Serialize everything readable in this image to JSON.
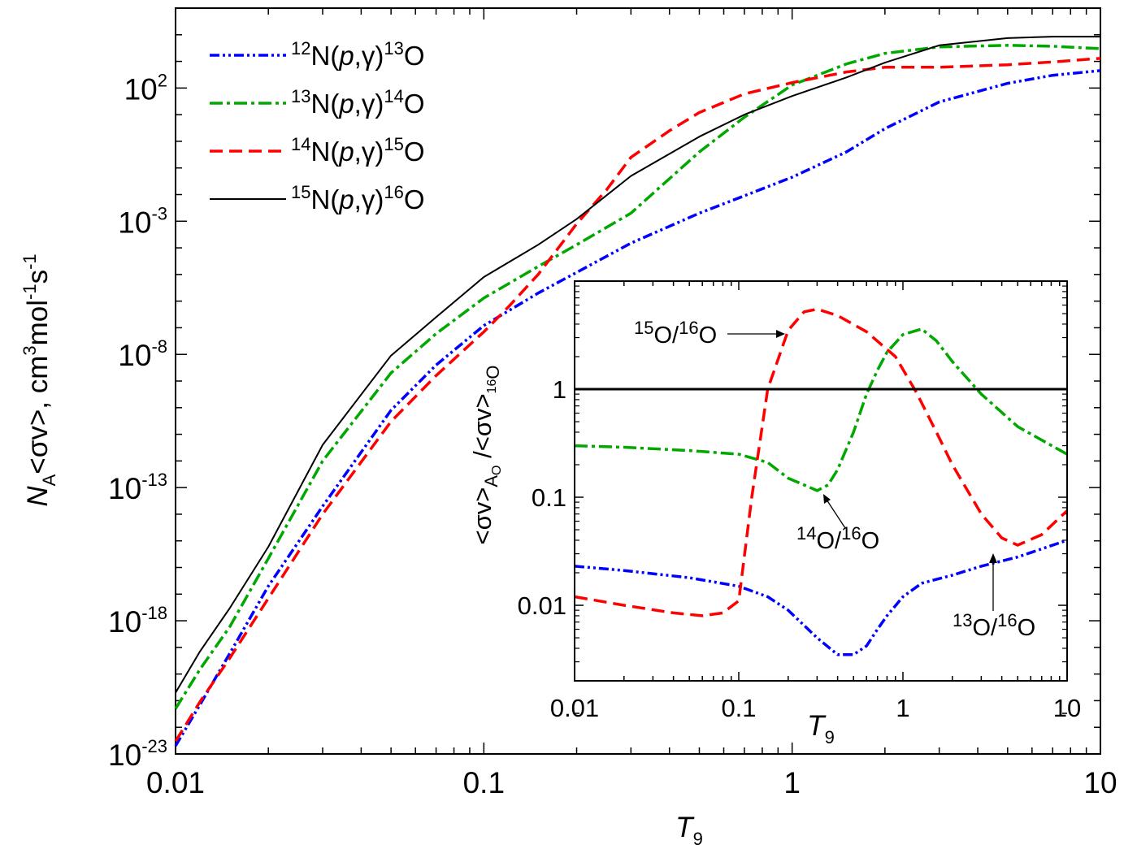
{
  "chart_data": [
    {
      "type": "line",
      "scale": "log-log",
      "x_label": {
        "symbol": "T",
        "sub": "9"
      },
      "y_label": {
        "prefix": "N",
        "prefix_sub": "A",
        "rate": "<σv>",
        "units": ", cm",
        "e1": "3",
        "mol": "mol",
        "e2": "-1",
        "s": "s",
        "e3": "-1"
      },
      "xlim": [
        0.01,
        10
      ],
      "ylim": [
        1e-23,
        100000.0
      ],
      "x_ticks": [
        {
          "value": 0.01,
          "label": "0.01"
        },
        {
          "value": 0.1,
          "label": "0.1"
        },
        {
          "value": 1,
          "label": "1"
        },
        {
          "value": 10,
          "label": "10"
        }
      ],
      "y_ticks": [
        {
          "value": 1e-23,
          "base": "10",
          "exp": "-23"
        },
        {
          "value": 1e-18,
          "base": "10",
          "exp": "-18"
        },
        {
          "value": 1e-13,
          "base": "10",
          "exp": "-13"
        },
        {
          "value": 1e-08,
          "base": "10",
          "exp": "-8"
        },
        {
          "value": 0.001,
          "base": "10",
          "exp": "-3"
        },
        {
          "value": 100.0,
          "base": "10",
          "exp": "2"
        }
      ],
      "legend_position": "top-left",
      "series": [
        {
          "name": "12N(p,γ)13O",
          "label": {
            "a": "12",
            "t": "N(",
            "p": "p",
            "g": ",γ)",
            "b": "13",
            "e": "O"
          },
          "color": "#0000ff",
          "dash": "dash-dot-dot",
          "x": [
            0.01,
            0.012,
            0.015,
            0.02,
            0.03,
            0.05,
            0.07,
            0.1,
            0.15,
            0.2,
            0.3,
            0.5,
            0.7,
            1,
            1.5,
            2,
            3,
            5,
            7,
            10
          ],
          "y": [
            2e-23,
            7e-22,
            6e-20,
            2e-17,
            2e-14,
            8e-11,
            4e-09,
            1.2e-07,
            2e-06,
            1.2e-05,
            0.00015,
            0.002,
            0.009,
            0.045,
            0.4,
            3,
            30,
            150,
            300,
            450
          ]
        },
        {
          "name": "13N(p,γ)14O",
          "label": {
            "a": "13",
            "t": "N(",
            "p": "p",
            "g": ",γ)",
            "b": "14",
            "e": "O"
          },
          "color": "#00a800",
          "dash": "dash-dot",
          "x": [
            0.01,
            0.012,
            0.015,
            0.02,
            0.03,
            0.05,
            0.07,
            0.1,
            0.15,
            0.2,
            0.3,
            0.5,
            0.7,
            1,
            1.5,
            2,
            3,
            5,
            7,
            10
          ],
          "y": [
            5e-22,
            1.5e-20,
            6e-19,
            2.2e-16,
            1e-12,
            2e-09,
            6e-08,
            1.3e-06,
            2e-05,
            0.00013,
            0.002,
            0.4,
            8,
            130,
            800,
            2000,
            3500,
            4000,
            3700,
            3000
          ]
        },
        {
          "name": "14N(p,γ)15O",
          "label": {
            "a": "14",
            "t": "N(",
            "p": "p",
            "g": ",γ)",
            "b": "15",
            "e": "O"
          },
          "color": "#ff0000",
          "dash": "dashed",
          "x": [
            0.01,
            0.012,
            0.015,
            0.02,
            0.03,
            0.05,
            0.07,
            0.1,
            0.12,
            0.15,
            0.2,
            0.25,
            0.3,
            0.4,
            0.5,
            0.7,
            1,
            1.5,
            2,
            3,
            5,
            7,
            10
          ],
          "y": [
            3e-23,
            9e-22,
            4e-20,
            7e-18,
            1e-14,
            3e-11,
            1.6e-09,
            7e-08,
            6e-07,
            1e-05,
            0.0008,
            0.015,
            0.25,
            2.5,
            12,
            60,
            160,
            400,
            600,
            600,
            750,
            950,
            1300
          ]
        },
        {
          "name": "15N(p,γ)16O",
          "label": {
            "a": "15",
            "t": "N(",
            "p": "p",
            "g": ",γ)",
            "b": "16",
            "e": "O"
          },
          "color": "#000000",
          "dash": "solid",
          "x": [
            0.01,
            0.012,
            0.015,
            0.02,
            0.03,
            0.05,
            0.07,
            0.1,
            0.15,
            0.2,
            0.3,
            0.5,
            0.7,
            1,
            1.5,
            2,
            3,
            5,
            7,
            10
          ],
          "y": [
            2e-21,
            7e-20,
            3e-18,
            6e-16,
            4e-12,
            9e-09,
            2.5e-07,
            8e-06,
            0.00013,
            0.0012,
            0.05,
            1.5,
            10,
            50,
            250,
            900,
            4000,
            7500,
            8500,
            8500
          ]
        }
      ]
    },
    {
      "type": "line",
      "scale": "log-log",
      "role": "inset",
      "x_label": {
        "symbol": "T",
        "sub": "9"
      },
      "y_label": {
        "num": "<σv>",
        "num_sub": "A",
        "num_subsub": "O",
        "sep": " /",
        "den": "<σv>",
        "den_sub": "16",
        "den_subsub": "O"
      },
      "xlim": [
        0.01,
        10
      ],
      "ylim": [
        0.002,
        10
      ],
      "x_ticks": [
        {
          "value": 0.01,
          "label": "0.01"
        },
        {
          "value": 0.1,
          "label": "0.1"
        },
        {
          "value": 1,
          "label": "1"
        },
        {
          "value": 10,
          "label": "10"
        }
      ],
      "y_ticks": [
        {
          "value": 0.01,
          "label": "0.01"
        },
        {
          "value": 0.1,
          "label": "0.1"
        },
        {
          "value": 1,
          "label": "1"
        }
      ],
      "annotations": [
        {
          "a": "15",
          "b": "O/",
          "c": "16",
          "d": "O",
          "x": 0.35,
          "y": 4.8
        },
        {
          "a": "14",
          "b": "O/",
          "c": "16",
          "d": "O",
          "x": 0.12,
          "y": 0.12
        },
        {
          "a": "13",
          "b": "O/",
          "c": "16",
          "d": "O",
          "x": 3.8,
          "y": 0.028
        }
      ],
      "series": [
        {
          "name": "13O/16O",
          "color": "#0000ff",
          "dash": "dash-dot-dot",
          "x": [
            0.01,
            0.02,
            0.05,
            0.1,
            0.15,
            0.2,
            0.3,
            0.4,
            0.5,
            0.6,
            0.7,
            0.8,
            1,
            1.3,
            2,
            3,
            5,
            10
          ],
          "y": [
            0.023,
            0.021,
            0.018,
            0.015,
            0.012,
            0.009,
            0.005,
            0.0035,
            0.0035,
            0.0042,
            0.006,
            0.008,
            0.012,
            0.016,
            0.019,
            0.023,
            0.028,
            0.04
          ]
        },
        {
          "name": "14O/16O",
          "color": "#00a800",
          "dash": "dash-dot",
          "x": [
            0.01,
            0.02,
            0.05,
            0.1,
            0.15,
            0.2,
            0.25,
            0.3,
            0.35,
            0.4,
            0.5,
            0.6,
            0.7,
            0.8,
            1,
            1.3,
            1.6,
            2,
            3,
            5,
            10
          ],
          "y": [
            0.3,
            0.29,
            0.27,
            0.25,
            0.21,
            0.15,
            0.13,
            0.115,
            0.13,
            0.18,
            0.4,
            0.9,
            1.5,
            2.2,
            3.2,
            3.6,
            2.8,
            1.8,
            0.9,
            0.45,
            0.25
          ]
        },
        {
          "name": "15O/16O",
          "color": "#ff0000",
          "dash": "dashed",
          "x": [
            0.01,
            0.02,
            0.04,
            0.06,
            0.08,
            0.1,
            0.12,
            0.15,
            0.2,
            0.25,
            0.3,
            0.4,
            0.6,
            0.9,
            1.2,
            1.6,
            2,
            3,
            4,
            5,
            7,
            10
          ],
          "y": [
            0.012,
            0.01,
            0.0085,
            0.008,
            0.0085,
            0.011,
            0.1,
            1.0,
            3.5,
            5.2,
            5.5,
            4.8,
            3.4,
            2.0,
            0.95,
            0.4,
            0.2,
            0.07,
            0.042,
            0.036,
            0.045,
            0.075
          ]
        },
        {
          "name": "ratio = 1",
          "color": "#000000",
          "dash": "solid",
          "x": [
            0.01,
            10
          ],
          "y": [
            1,
            1
          ]
        }
      ]
    }
  ]
}
